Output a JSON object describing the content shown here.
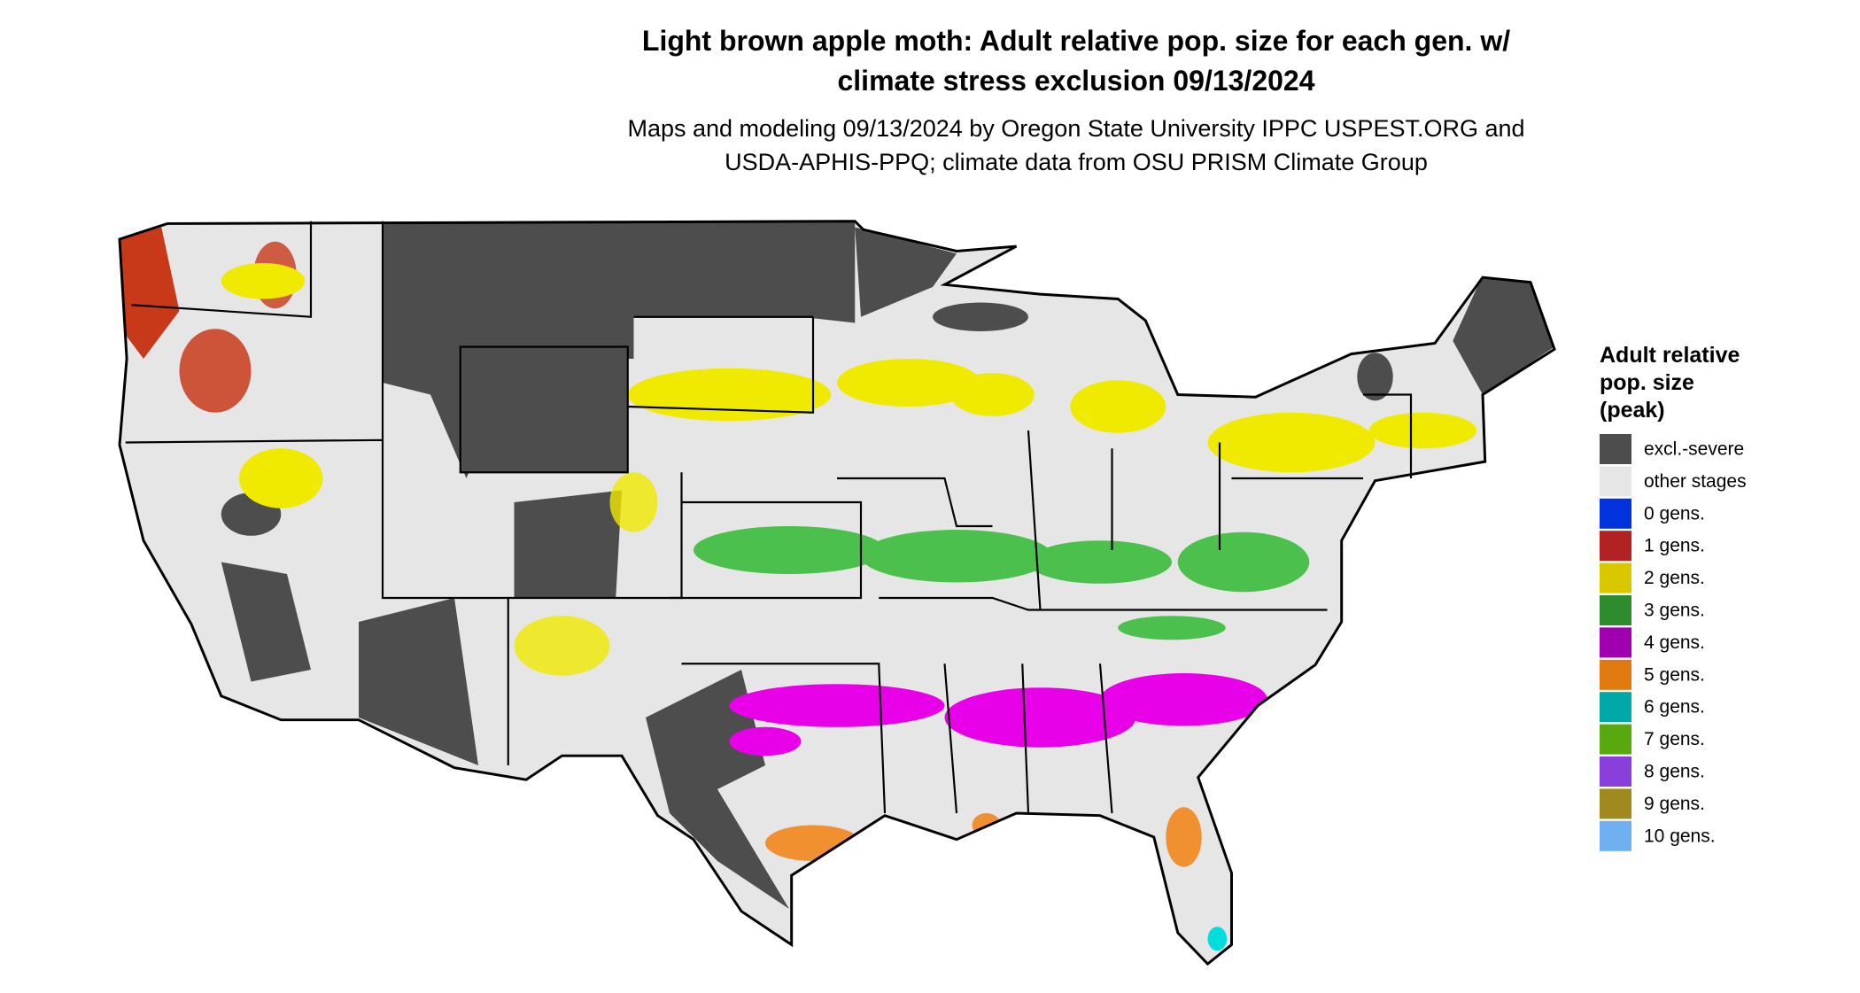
{
  "title": [
    "Light brown apple moth: Adult relative pop. size for each gen. w/",
    "climate stress exclusion 09/13/2024"
  ],
  "subtitle": [
    "Maps and modeling 09/13/2024 by Oregon State University IPPC USPEST.ORG and",
    "USDA-APHIS-PPQ; climate data from OSU PRISM Climate Group"
  ],
  "legend": {
    "title": [
      "Adult relative",
      "pop. size",
      "(peak)"
    ],
    "items": [
      {
        "label": "excl.-severe",
        "color": "#4d4d4d"
      },
      {
        "label": "other stages",
        "color": "#e6e6e6"
      },
      {
        "label": "0 gens.",
        "color": "#0033dd"
      },
      {
        "label": "1 gens.",
        "color": "#b22222"
      },
      {
        "label": "2 gens.",
        "color": "#d9c800"
      },
      {
        "label": "3 gens.",
        "color": "#2e8b2e"
      },
      {
        "label": "4 gens.",
        "color": "#a000b0"
      },
      {
        "label": "5 gens.",
        "color": "#e07a10"
      },
      {
        "label": "6 gens.",
        "color": "#00a8a8"
      },
      {
        "label": "7 gens.",
        "color": "#5aa810"
      },
      {
        "label": "8 gens.",
        "color": "#8a3fdc"
      },
      {
        "label": "9 gens.",
        "color": "#a08a20"
      },
      {
        "label": "10 gens.",
        "color": "#70b0f0"
      }
    ]
  }
}
